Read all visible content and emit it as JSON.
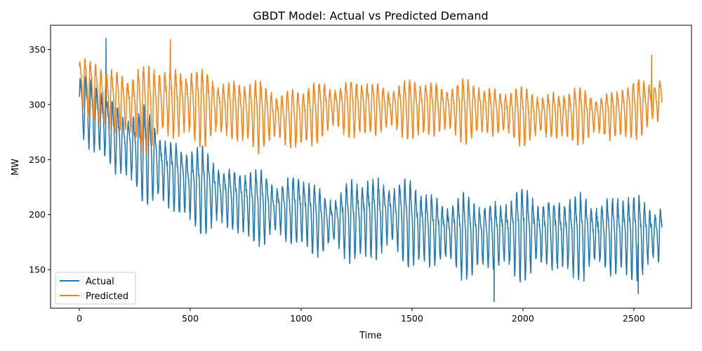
{
  "chart_data": {
    "type": "line",
    "title": "GBDT Model: Actual vs Predicted Demand",
    "xlabel": "Time",
    "ylabel": "MW",
    "xlim": [
      -130,
      2760
    ],
    "ylim": [
      115,
      372
    ],
    "x_ticks": [
      0,
      500,
      1000,
      1500,
      2000,
      2500
    ],
    "y_ticks": [
      150,
      200,
      250,
      300,
      350
    ],
    "grid": false,
    "legend_position": "lower-left",
    "n_points": 2628,
    "series": [
      {
        "name": "Actual",
        "color": "#1f77b4",
        "pattern": "daily cycle (~24 samples), declining trend",
        "keyframes": {
          "t": [
            0,
            100,
            200,
            300,
            400,
            500,
            700,
            900,
            1000,
            1100,
            1200,
            1400,
            1600,
            1800,
            2000,
            2200,
            2400,
            2628
          ],
          "peak": [
            330,
            322,
            305,
            300,
            280,
            268,
            250,
            240,
            242,
            225,
            235,
            243,
            225,
            220,
            228,
            222,
            225,
            220
          ],
          "trough": [
            275,
            250,
            225,
            215,
            200,
            190,
            180,
            172,
            170,
            162,
            160,
            160,
            150,
            145,
            145,
            145,
            142,
            145
          ]
        },
        "extremes": [
          {
            "x": 120,
            "y": 360
          },
          {
            "x": 1870,
            "y": 121
          },
          {
            "x": 2520,
            "y": 128
          }
        ]
      },
      {
        "name": "Predicted",
        "color": "#ff7f0e",
        "pattern": "daily cycle (~24 samples), roughly flat",
        "keyframes": {
          "t": [
            0,
            100,
            200,
            300,
            400,
            500,
            700,
            900,
            1000,
            1100,
            1200,
            1400,
            1600,
            1800,
            2000,
            2200,
            2400,
            2628
          ],
          "peak": [
            345,
            342,
            340,
            338,
            348,
            340,
            330,
            322,
            320,
            328,
            328,
            325,
            328,
            325,
            318,
            318,
            318,
            335
          ],
          "trough": [
            300,
            275,
            265,
            260,
            262,
            265,
            262,
            258,
            258,
            268,
            270,
            270,
            268,
            268,
            265,
            265,
            265,
            275
          ]
        },
        "extremes": [
          {
            "x": 410,
            "y": 359
          },
          {
            "x": 2580,
            "y": 345
          }
        ]
      }
    ]
  }
}
